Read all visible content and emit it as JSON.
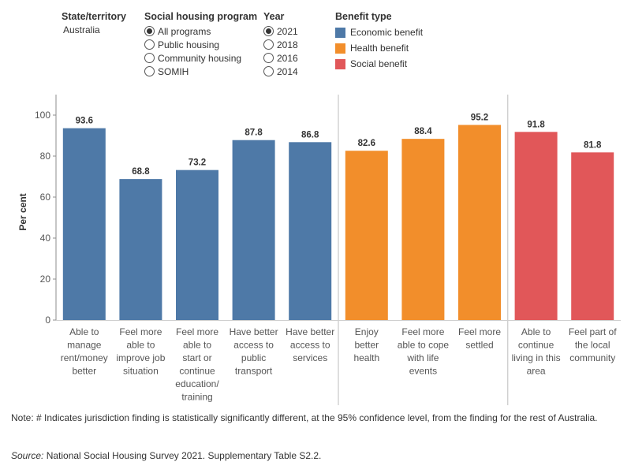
{
  "filters": {
    "state": {
      "title": "State/territory",
      "value": "Australia"
    },
    "program": {
      "title": "Social housing program",
      "options": [
        "All programs",
        "Public housing",
        "Community housing",
        "SOMIH"
      ],
      "selected": "All programs"
    },
    "year": {
      "title": "Year",
      "options": [
        "2021",
        "2018",
        "2016",
        "2014"
      ],
      "selected": "2021"
    },
    "legend": {
      "title": "Benefit type",
      "items": [
        {
          "label": "Economic benefit",
          "color": "#4e79a7"
        },
        {
          "label": "Health benefit",
          "color": "#f28e2b"
        },
        {
          "label": "Social benefit",
          "color": "#e15759"
        }
      ]
    }
  },
  "chart_data": {
    "type": "bar",
    "ylabel": "Per cent",
    "xlabel": "",
    "ylim": [
      0,
      110
    ],
    "yticks": [
      0,
      20,
      40,
      60,
      80,
      100
    ],
    "categories": [
      "Able to manage rent/money better",
      "Feel more able to improve job situation",
      "Feel more able to start or continue education/ training",
      "Have better access to public transport",
      "Have better access to services",
      "Enjoy better health",
      "Feel more able to cope with life events",
      "Feel more settled",
      "Able to continue living in this area",
      "Feel part of the local community"
    ],
    "category_lines": [
      [
        "Able to",
        "manage",
        "rent/money",
        "better"
      ],
      [
        "Feel more",
        "able to",
        "improve job",
        "situation"
      ],
      [
        "Feel more",
        "able to",
        "start or",
        "continue",
        "education/",
        "training"
      ],
      [
        "Have better",
        "access to",
        "public",
        "transport"
      ],
      [
        "Have better",
        "access to",
        "services"
      ],
      [
        "Enjoy",
        "better",
        "health"
      ],
      [
        "Feel more",
        "able to cope",
        "with life",
        "events"
      ],
      [
        "Feel more",
        "settled"
      ],
      [
        "Able to",
        "continue",
        "living in this",
        "area"
      ],
      [
        "Feel part of",
        "the local",
        "community"
      ]
    ],
    "values": [
      93.6,
      68.8,
      73.2,
      87.8,
      86.8,
      82.6,
      88.4,
      95.2,
      91.8,
      81.8
    ],
    "value_labels": [
      "93.6",
      "68.8",
      "73.2",
      "87.8",
      "86.8",
      "82.6",
      "88.4",
      "95.2",
      "91.8",
      "81.8"
    ],
    "benefit_types": [
      "Economic benefit",
      "Economic benefit",
      "Economic benefit",
      "Economic benefit",
      "Economic benefit",
      "Health benefit",
      "Health benefit",
      "Health benefit",
      "Social benefit",
      "Social benefit"
    ],
    "colors": {
      "Economic benefit": "#4e79a7",
      "Health benefit": "#f28e2b",
      "Social benefit": "#e15759"
    }
  },
  "footer": {
    "note": "Note: # Indicates jurisdiction finding is statistically significantly different, at the 95% confidence level, from the finding for the rest of Australia.",
    "source_label": "Source:",
    "source_text": " National Social Housing Survey 2021. Supplementary Table S2.2."
  }
}
